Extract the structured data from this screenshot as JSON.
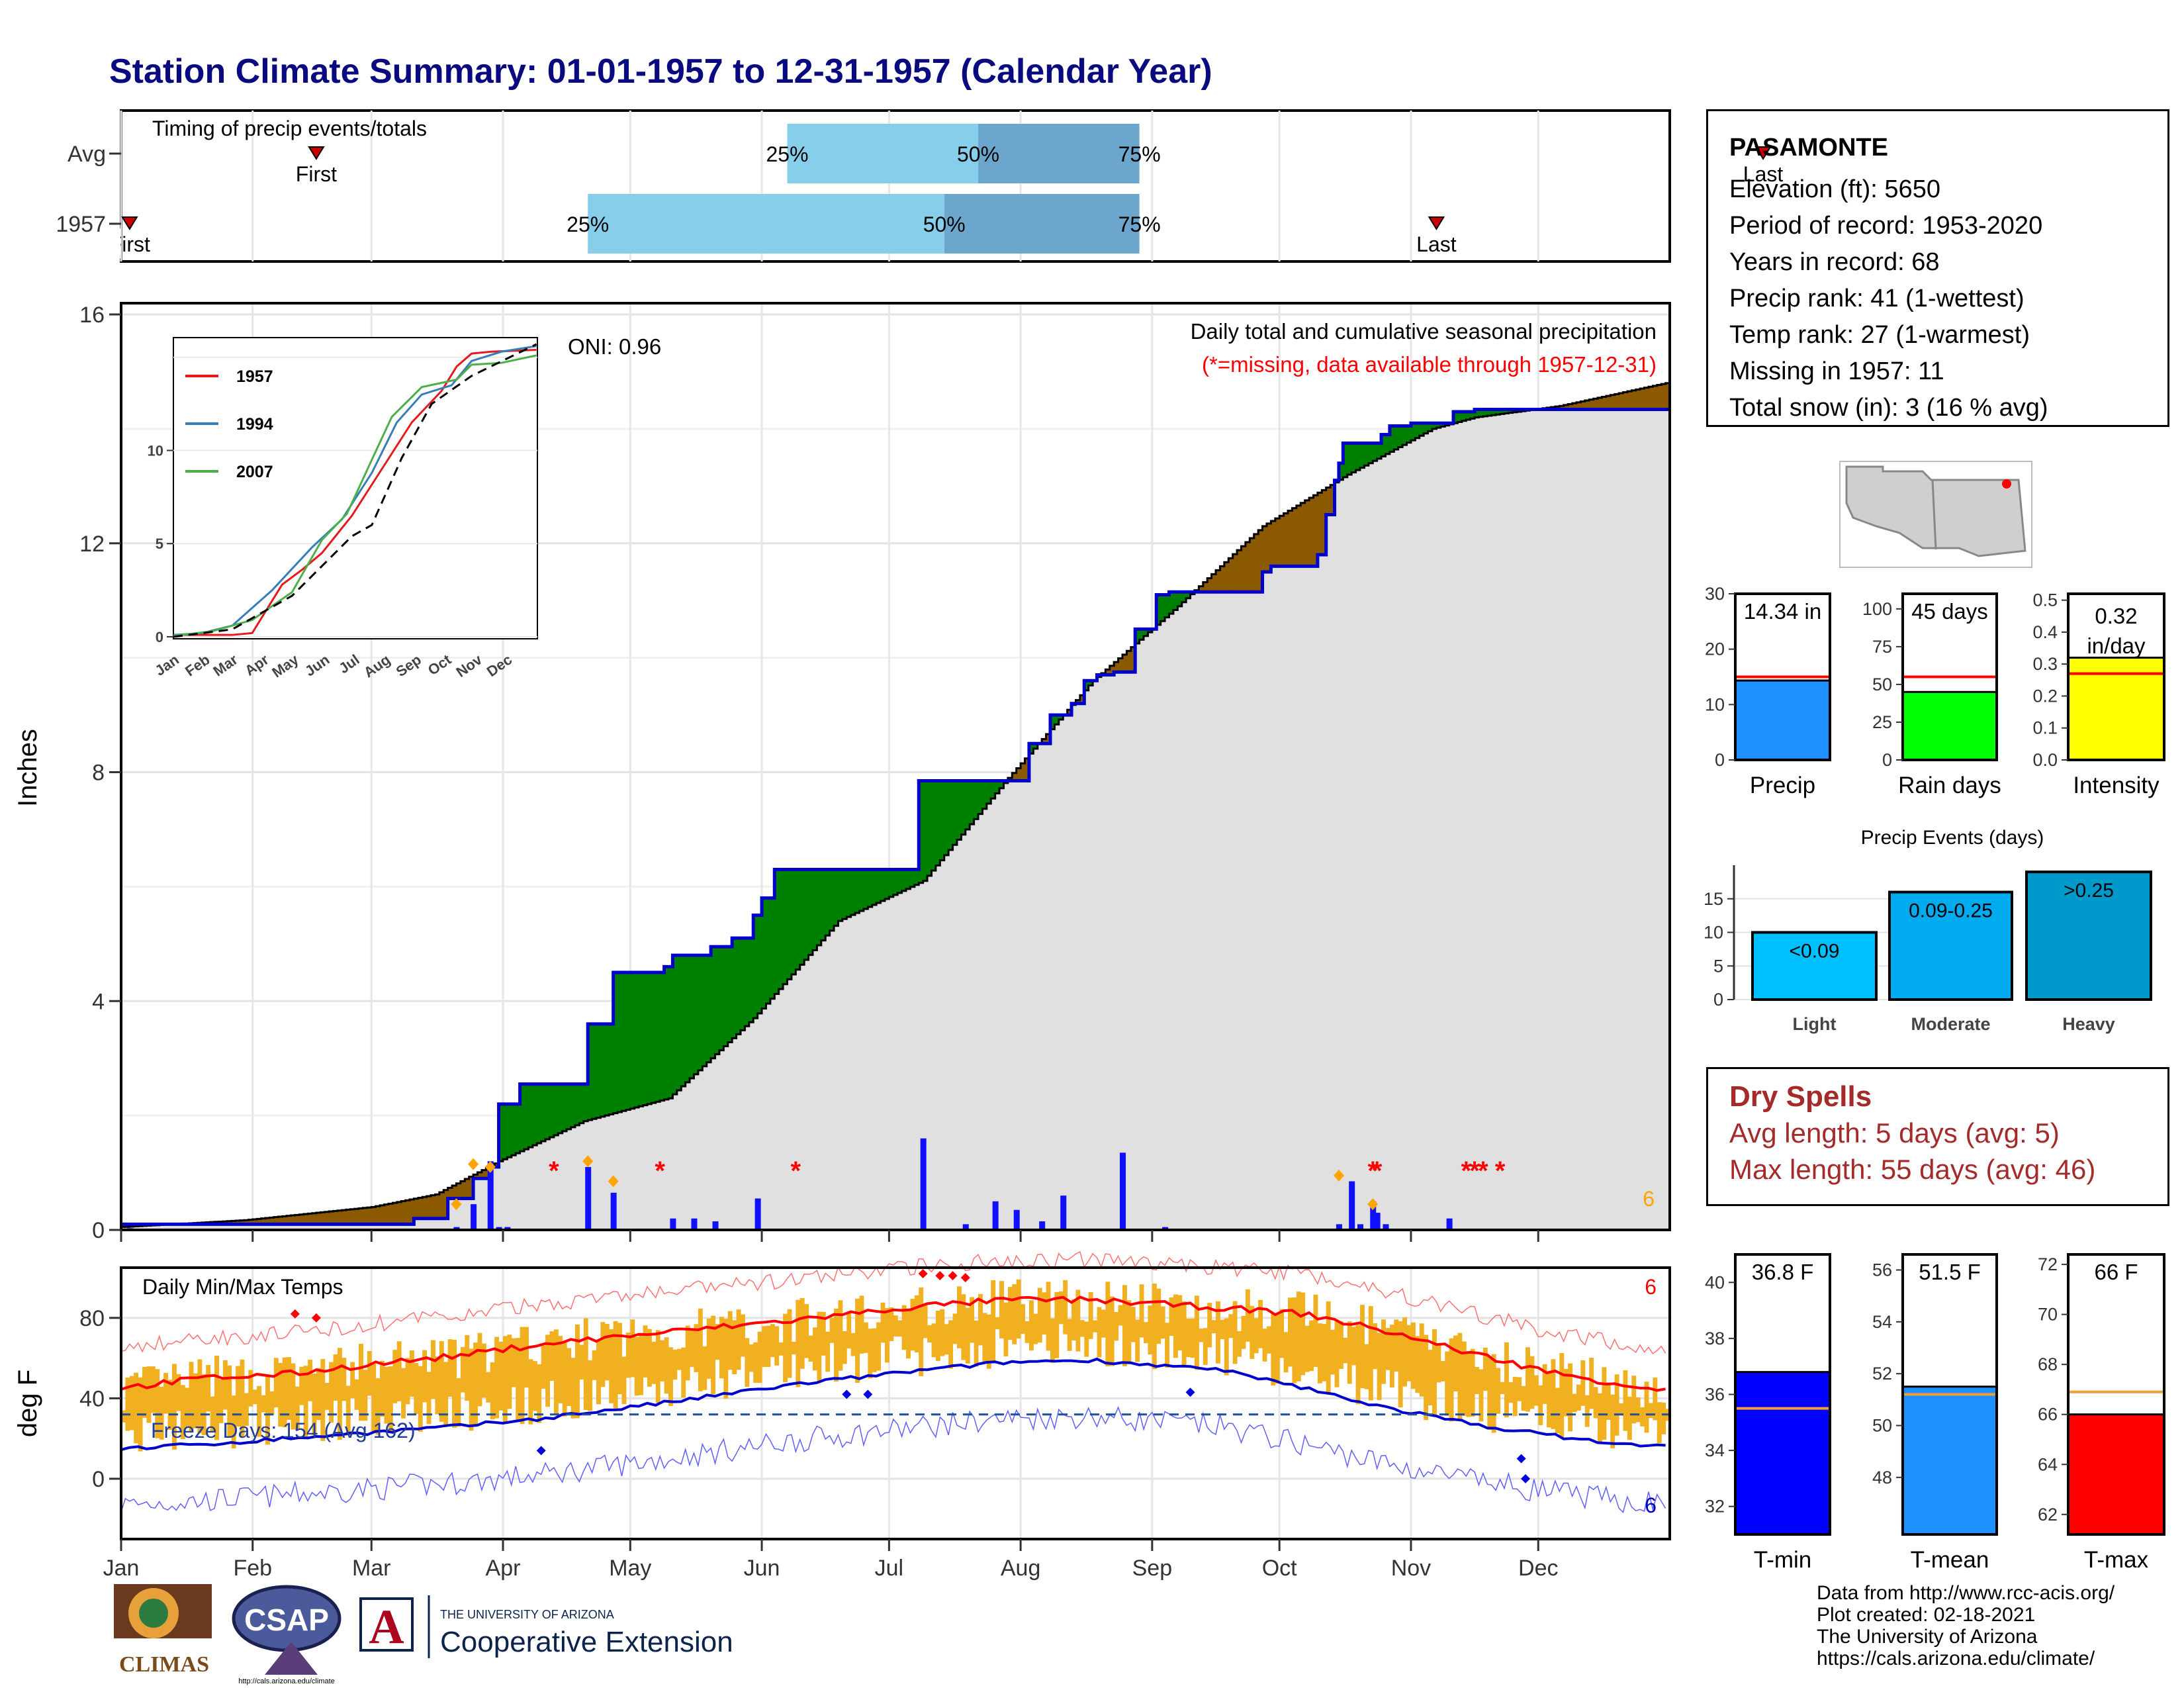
{
  "title": "Station Climate Summary: 01-01-1957 to 12-31-1957 (Calendar Year)",
  "station": {
    "name": "PASAMONTE",
    "lines": [
      "Elevation (ft): 5650",
      "Period of record: 1953-2020",
      "Years in record: 68",
      "Precip rank: 41 (1-wettest)",
      "Temp rank: 27 (1-warmest)",
      "Missing in 1957: 11",
      "Total snow (in): 3 (16 % avg)"
    ]
  },
  "timing_panel": {
    "title": "Timing of precip events/totals",
    "rows": [
      {
        "label": "Avg",
        "first_label": "First",
        "last_label": "Last",
        "first_day": 47,
        "last_day": 388,
        "p25_day": 158,
        "p50_day": 203,
        "p75_day": 241,
        "p25_label": "25%",
        "p50_label": "50%",
        "p75_label": "75%"
      },
      {
        "label": "1957",
        "first_label": "First",
        "last_label": "Last",
        "first_day": 3,
        "last_day": 311,
        "p25_day": 111,
        "p50_day": 195,
        "p75_day": 241,
        "p25_label": "25%",
        "p50_label": "50%",
        "p75_label": "75%"
      }
    ]
  },
  "precip_panel": {
    "title": "Daily total and cumulative seasonal precipitation",
    "subtitle": "(*=missing, data available through 1957-12-31)",
    "ylabel": "Inches",
    "oni_label": "ONI: 0.96",
    "corner_count": "6",
    "y_ticks": [
      "0",
      "4",
      "8",
      "12",
      "16"
    ],
    "colors": {
      "above": "#008000",
      "below": "#8b5a00",
      "normal_fill": "#e0e0e0",
      "obs_line": "#0000cd",
      "daily": "#1010ff",
      "missing": "#ff0000",
      "snow": "#ffa500"
    }
  },
  "temp_panel": {
    "title": "Daily Min/Max Temps",
    "ylabel": "deg F",
    "freeze_label": "Freeze Days: 154 (Avg 162)",
    "corner_top": "6",
    "corner_bottom": "6",
    "y_ticks": [
      "0",
      "40",
      "80"
    ],
    "colors": {
      "bar": "#f0b020",
      "max": "#ff0000",
      "min": "#0000cd"
    }
  },
  "months": [
    "Jan",
    "Feb",
    "Mar",
    "Apr",
    "May",
    "Jun",
    "Jul",
    "Aug",
    "Sep",
    "Oct",
    "Nov",
    "Dec"
  ],
  "inset": {
    "legend": [
      "1957",
      "1994",
      "2007"
    ],
    "colors": [
      "#e41a1c",
      "#377eb8",
      "#4daf4a"
    ],
    "y_ticks": [
      "0",
      "5",
      "10"
    ],
    "x_ticks": [
      "Jan",
      "Feb",
      "Mar",
      "Apr",
      "May",
      "Jun",
      "Jul",
      "Aug",
      "Sep",
      "Oct",
      "Nov",
      "Dec"
    ]
  },
  "chart_data": [
    {
      "type": "bar",
      "name": "precip_totals",
      "categories": [
        "Precip",
        "Rain days",
        "Intensity"
      ],
      "values": [
        14.34,
        45,
        0.32
      ],
      "averages": [
        15.0,
        55,
        0.27
      ],
      "labels": [
        "14.34 in",
        "45 days",
        "0.32 in/day"
      ],
      "ylims": [
        [
          0,
          30
        ],
        [
          0,
          110
        ],
        [
          0,
          0.52
        ]
      ],
      "y_ticks": [
        [
          "0",
          "10",
          "20",
          "30"
        ],
        [
          "0",
          "25",
          "50",
          "75",
          "100"
        ],
        [
          "0.0",
          "0.1",
          "0.2",
          "0.3",
          "0.4",
          "0.5"
        ]
      ],
      "colors": [
        "#1e90ff",
        "#00ff00",
        "#ffff00"
      ]
    },
    {
      "type": "bar",
      "name": "precip_events",
      "title": "Precip Events (days)",
      "categories": [
        "Light",
        "Moderate",
        "Heavy"
      ],
      "values": [
        10,
        16,
        19
      ],
      "labels": [
        "<0.09",
        "0.09-0.25",
        ">0.25"
      ],
      "ylim": [
        0,
        20
      ],
      "y_ticks": [
        "0",
        "5",
        "10",
        "15"
      ],
      "colors": [
        "#00bfff",
        "#00aaee",
        "#0099cc"
      ]
    },
    {
      "type": "bar",
      "name": "temperature_means",
      "categories": [
        "T-min",
        "T-mean",
        "T-max"
      ],
      "values": [
        36.8,
        51.5,
        66.0
      ],
      "averages": [
        35.5,
        51.2,
        66.9
      ],
      "labels": [
        "36.8 F",
        "51.5 F",
        "66 F"
      ],
      "ylims": [
        [
          31,
          41
        ],
        [
          45.8,
          56.6
        ],
        [
          61.2,
          72.4
        ]
      ],
      "y_ticks": [
        [
          "32",
          "34",
          "36",
          "38",
          "40"
        ],
        [
          "48",
          "50",
          "52",
          "54",
          "56"
        ],
        [
          "62",
          "64",
          "66",
          "68",
          "70",
          "72"
        ]
      ],
      "colors": [
        "#0000ff",
        "#1e90ff",
        "#ff0000"
      ]
    },
    {
      "type": "area",
      "name": "cumulative_precip_1957",
      "x_unit": "day of year",
      "observed_steps": [
        [
          1,
          0.1
        ],
        [
          68,
          0.1
        ],
        [
          70,
          0.2
        ],
        [
          78,
          0.55
        ],
        [
          84,
          0.9
        ],
        [
          88,
          1.1
        ],
        [
          90,
          2.2
        ],
        [
          95,
          2.55
        ],
        [
          110,
          2.55
        ],
        [
          111,
          3.6
        ],
        [
          117,
          4.5
        ],
        [
          128,
          4.5
        ],
        [
          129,
          4.6
        ],
        [
          131,
          4.8
        ],
        [
          140,
          4.95
        ],
        [
          145,
          5.1
        ],
        [
          150,
          5.5
        ],
        [
          152,
          5.8
        ],
        [
          155,
          6.3
        ],
        [
          189,
          7.85
        ],
        [
          215,
          8.5
        ],
        [
          220,
          9.0
        ],
        [
          225,
          9.2
        ],
        [
          228,
          9.6
        ],
        [
          231,
          9.7
        ],
        [
          235,
          9.75
        ],
        [
          240,
          10.5
        ],
        [
          245,
          11.1
        ],
        [
          248,
          11.15
        ],
        [
          270,
          11.5
        ],
        [
          272,
          11.6
        ],
        [
          283,
          11.8
        ],
        [
          285,
          12.5
        ],
        [
          287,
          13.1
        ],
        [
          288,
          13.4
        ],
        [
          289,
          13.75
        ],
        [
          297,
          13.75
        ],
        [
          298,
          13.9
        ],
        [
          300,
          14.05
        ],
        [
          305,
          14.1
        ],
        [
          315,
          14.3
        ],
        [
          320,
          14.34
        ],
        [
          365,
          14.34
        ]
      ],
      "normal_curve": [
        [
          1,
          0.05
        ],
        [
          30,
          0.17
        ],
        [
          60,
          0.4
        ],
        [
          75,
          0.62
        ],
        [
          90,
          1.2
        ],
        [
          110,
          1.9
        ],
        [
          130,
          2.3
        ],
        [
          150,
          3.7
        ],
        [
          170,
          5.4
        ],
        [
          190,
          6.1
        ],
        [
          210,
          7.9
        ],
        [
          230,
          9.6
        ],
        [
          250,
          10.9
        ],
        [
          270,
          12.3
        ],
        [
          290,
          13.2
        ],
        [
          300,
          13.6
        ],
        [
          310,
          14.0
        ],
        [
          320,
          14.2
        ],
        [
          340,
          14.4
        ],
        [
          365,
          14.8
        ]
      ],
      "daily_days": [
        3,
        80,
        84,
        88,
        90,
        92,
        111,
        117,
        131,
        136,
        141,
        151,
        190,
        200,
        207,
        212,
        218,
        223,
        237,
        247,
        288,
        291,
        293,
        296,
        297,
        299,
        314
      ],
      "daily_values": [
        0.03,
        0.05,
        0.45,
        1.2,
        0.05,
        0.05,
        1.1,
        0.65,
        0.2,
        0.2,
        0.15,
        0.55,
        1.6,
        0.1,
        0.5,
        0.35,
        0.15,
        0.6,
        1.35,
        0.05,
        0.1,
        0.85,
        0.1,
        0.5,
        0.3,
        0.1,
        0.2
      ],
      "missing_days": [
        103,
        128,
        160,
        296,
        297,
        318,
        320,
        322,
        326
      ]
    },
    {
      "type": "line",
      "name": "daily_temps_1957",
      "ylim": [
        -30,
        105
      ],
      "series": [
        {
          "name": "Tmax",
          "values": [
            45,
            50,
            52,
            57,
            61,
            67,
            73,
            79,
            86,
            89,
            89,
            85,
            82,
            73,
            62,
            52,
            47,
            44
          ]
        },
        {
          "name": "Tmin",
          "values": [
            15,
            17,
            20,
            23,
            26,
            30,
            38,
            47,
            54,
            58,
            59,
            54,
            45,
            35,
            27,
            21,
            17,
            16
          ]
        }
      ],
      "x_days": [
        1,
        20,
        40,
        60,
        80,
        100,
        130,
        160,
        190,
        210,
        230,
        260,
        280,
        300,
        320,
        340,
        355,
        365
      ],
      "freeze_line": 32
    }
  ],
  "footer": {
    "lines": [
      "Data from http://www.rcc-acis.org/",
      "Plot created: 02-18-2021",
      "The University of Arizona",
      "https://cals.arizona.edu/climate/"
    ],
    "logo_climas": "CLIMAS",
    "logo_csap": "CSAP",
    "logo_csap_url": "http://cals.arizona.edu/climate",
    "logo_ua_small": "THE UNIVERSITY OF ARIZONA",
    "logo_ua_big": "Cooperative Extension"
  }
}
